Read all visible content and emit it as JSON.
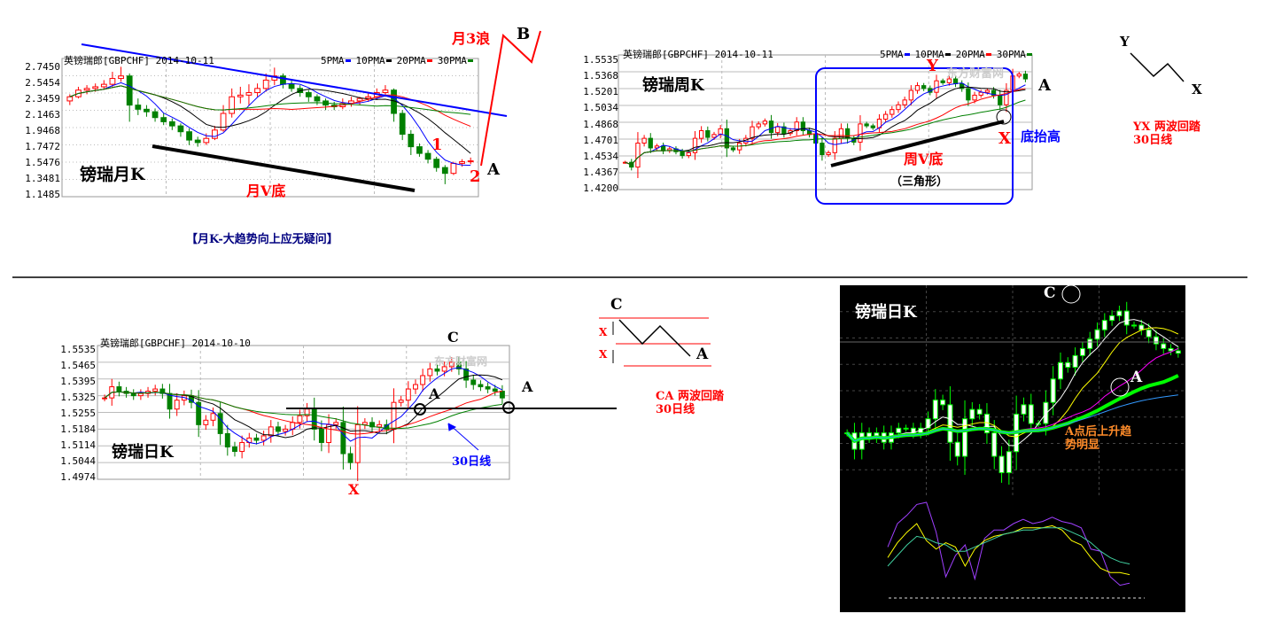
{
  "colors": {
    "up": "#ff0000",
    "down": "#008000",
    "ma5": "#0000ff",
    "ma10": "#000000",
    "ma20": "#ff0000",
    "ma30": "#008000",
    "trend_blue": "#0000ff",
    "annot_red": "#ff0000",
    "dark_bg": "#000000"
  },
  "legend": [
    {
      "label": "5PMA",
      "period": 5,
      "color": "#0000ff"
    },
    {
      "label": "10PMA",
      "period": 10,
      "color": "#000000"
    },
    {
      "label": "20PMA",
      "period": 20,
      "color": "#ff0000"
    },
    {
      "label": "30PMA",
      "period": 30,
      "color": "#008000"
    }
  ],
  "monthly": {
    "header": "英镑瑞郎[GBPCHF] 2014-10-11",
    "name": "镑瑞月K",
    "v_label": "月V底",
    "wave_label": "月3浪",
    "b": "B",
    "one": "1",
    "two": "2",
    "a": "A",
    "caption": "【月K-大趋势向上应无疑问】",
    "ticks": [
      "2.7450",
      "2.5454",
      "2.3459",
      "2.1463",
      "1.9468",
      "1.7472",
      "1.5476",
      "1.3481",
      "1.1485"
    ],
    "ylim": [
      1.1485,
      2.745
    ],
    "ohlc": [
      [
        2.25,
        2.33,
        2.2,
        2.3
      ],
      [
        2.3,
        2.42,
        2.28,
        2.38
      ],
      [
        2.38,
        2.44,
        2.33,
        2.4
      ],
      [
        2.4,
        2.46,
        2.36,
        2.42
      ],
      [
        2.42,
        2.5,
        2.39,
        2.45
      ],
      [
        2.45,
        2.6,
        2.42,
        2.52
      ],
      [
        2.52,
        2.66,
        2.48,
        2.55
      ],
      [
        2.55,
        2.58,
        2.0,
        2.2
      ],
      [
        2.2,
        2.28,
        2.08,
        2.15
      ],
      [
        2.15,
        2.2,
        2.06,
        2.12
      ],
      [
        2.12,
        2.16,
        2.0,
        2.05
      ],
      [
        2.05,
        2.1,
        1.96,
        2.0
      ],
      [
        2.0,
        2.04,
        1.9,
        1.95
      ],
      [
        1.95,
        1.98,
        1.82,
        1.88
      ],
      [
        1.88,
        1.92,
        1.72,
        1.78
      ],
      [
        1.78,
        1.82,
        1.7,
        1.75
      ],
      [
        1.75,
        1.86,
        1.72,
        1.8
      ],
      [
        1.8,
        1.95,
        1.78,
        1.9
      ],
      [
        1.9,
        2.2,
        1.88,
        2.1
      ],
      [
        2.1,
        2.4,
        2.05,
        2.3
      ],
      [
        2.3,
        2.42,
        2.22,
        2.32
      ],
      [
        2.32,
        2.45,
        2.2,
        2.35
      ],
      [
        2.35,
        2.46,
        2.3,
        2.4
      ],
      [
        2.4,
        2.58,
        2.36,
        2.5
      ],
      [
        2.5,
        2.65,
        2.44,
        2.55
      ],
      [
        2.55,
        2.58,
        2.4,
        2.45
      ],
      [
        2.45,
        2.5,
        2.36,
        2.4
      ],
      [
        2.4,
        2.44,
        2.3,
        2.35
      ],
      [
        2.35,
        2.38,
        2.24,
        2.3
      ],
      [
        2.3,
        2.33,
        2.2,
        2.25
      ],
      [
        2.25,
        2.28,
        2.14,
        2.2
      ],
      [
        2.2,
        2.24,
        2.14,
        2.18
      ],
      [
        2.18,
        2.28,
        2.15,
        2.22
      ],
      [
        2.22,
        2.3,
        2.18,
        2.25
      ],
      [
        2.25,
        2.3,
        2.2,
        2.28
      ],
      [
        2.28,
        2.34,
        2.24,
        2.3
      ],
      [
        2.3,
        2.4,
        2.26,
        2.35
      ],
      [
        2.35,
        2.44,
        2.3,
        2.38
      ],
      [
        2.38,
        2.4,
        2.0,
        2.1
      ],
      [
        2.1,
        2.14,
        1.78,
        1.85
      ],
      [
        1.85,
        1.9,
        1.6,
        1.7
      ],
      [
        1.7,
        1.74,
        1.58,
        1.62
      ],
      [
        1.62,
        1.66,
        1.5,
        1.55
      ],
      [
        1.55,
        1.58,
        1.4,
        1.45
      ],
      [
        1.45,
        1.48,
        1.25,
        1.38
      ],
      [
        1.38,
        1.52,
        1.36,
        1.5
      ],
      [
        1.5,
        1.55,
        1.46,
        1.52
      ],
      [
        1.52,
        1.57,
        1.49,
        1.53
      ]
    ]
  },
  "weekly": {
    "header": "英镑瑞郎[GBPCHF] 2014-10-11",
    "name": "镑瑞周K",
    "y": "Y",
    "a": "A",
    "x": "X",
    "bottom_up": "底抬高",
    "v_label": "周V底",
    "triangle": "（三角形）",
    "watermark": "东方财富网",
    "ticks": [
      "1.5535",
      "1.5368",
      "1.5201",
      "1.5034",
      "1.4868",
      "1.4701",
      "1.4534",
      "1.4367",
      "1.4200"
    ],
    "ylim": [
      1.42,
      1.5535
    ],
    "closes": [
      1.445,
      1.44,
      1.465,
      1.47,
      1.46,
      1.462,
      1.457,
      1.459,
      1.456,
      1.452,
      1.455,
      1.47,
      1.478,
      1.471,
      1.474,
      1.48,
      1.46,
      1.458,
      1.465,
      1.47,
      1.482,
      1.485,
      1.488,
      1.476,
      1.482,
      1.475,
      1.478,
      1.487,
      1.478,
      1.474,
      1.465,
      1.453,
      1.455,
      1.47,
      1.48,
      1.47,
      1.466,
      1.485,
      1.483,
      1.481,
      1.49,
      1.495,
      1.5,
      1.505,
      1.51,
      1.52,
      1.525,
      1.522,
      1.518,
      1.53,
      1.528,
      1.532,
      1.527,
      1.522,
      1.51,
      1.515,
      1.518,
      1.52,
      1.515,
      1.505,
      1.52,
      1.535,
      1.537,
      1.532
    ]
  },
  "yx_diagram": {
    "y": "Y",
    "x": "X",
    "line1": "YX 两波回踏",
    "line2": "30日线"
  },
  "daily": {
    "header": "英镑瑞郎[GBPCHF] 2014-10-10",
    "name": "镑瑞日K",
    "c": "C",
    "a1": "A",
    "a2": "A",
    "x": "X",
    "ma30_label": "30日线",
    "watermark": "东方财富网",
    "ticks": [
      "1.5535",
      "1.5465",
      "1.5395",
      "1.5325",
      "1.5255",
      "1.5184",
      "1.5114",
      "1.5044",
      "1.4974"
    ],
    "ylim": [
      1.4974,
      1.5535
    ],
    "closes": [
      1.532,
      1.537,
      1.535,
      1.534,
      1.533,
      1.534,
      1.535,
      1.536,
      1.534,
      1.527,
      1.531,
      1.533,
      1.53,
      1.52,
      1.522,
      1.525,
      1.516,
      1.51,
      1.508,
      1.512,
      1.514,
      1.513,
      1.515,
      1.519,
      1.517,
      1.518,
      1.521,
      1.524,
      1.527,
      1.518,
      1.512,
      1.52,
      1.521,
      1.507,
      1.503,
      1.52,
      1.521,
      1.519,
      1.52,
      1.518,
      1.53,
      1.531,
      1.536,
      1.538,
      1.542,
      1.545,
      1.544,
      1.546,
      1.548,
      1.545,
      1.54,
      1.538,
      1.537,
      1.536,
      1.535,
      1.532
    ]
  },
  "ca_diagram": {
    "c": "C",
    "a": "A",
    "x1": "X",
    "x2": "X",
    "line1": "CA 两波回踏",
    "line2": "30日线"
  },
  "dark_daily": {
    "name": "镑瑞日K",
    "c": "C",
    "a": "A",
    "note1": "A点后上升趋",
    "note2": "势明显",
    "ma_colors": [
      "#ffffff",
      "#ffff00",
      "#ff00ff",
      "#00ff00",
      "#3399ff"
    ],
    "ma_periods": [
      5,
      10,
      20,
      30,
      60
    ],
    "closes": [
      1.512,
      1.505,
      1.512,
      1.51,
      1.512,
      1.508,
      1.512,
      1.514,
      1.514,
      1.512,
      1.514,
      1.518,
      1.526,
      1.524,
      1.508,
      1.502,
      1.518,
      1.522,
      1.52,
      1.512,
      1.502,
      1.495,
      1.504,
      1.52,
      1.524,
      1.516,
      1.516,
      1.525,
      1.535,
      1.542,
      1.54,
      1.545,
      1.548,
      1.552,
      1.556,
      1.56,
      1.562,
      1.564,
      1.558,
      1.558,
      1.556,
      1.553,
      1.55,
      1.548,
      1.547,
      1.546
    ],
    "indicator": {
      "purple": [
        48,
        70,
        78,
        88,
        90,
        62,
        20,
        40,
        50,
        18,
        56,
        64,
        64,
        70,
        74,
        70,
        72,
        76,
        72,
        70,
        66,
        46,
        44,
        20,
        12,
        14
      ],
      "yellow": [
        38,
        52,
        62,
        70,
        54,
        46,
        52,
        48,
        30,
        46,
        54,
        58,
        60,
        62,
        66,
        66,
        66,
        68,
        64,
        54,
        50,
        38,
        28,
        24,
        24,
        22
      ],
      "teal": [
        30,
        40,
        50,
        58,
        56,
        52,
        50,
        44,
        44,
        48,
        52,
        56,
        60,
        62,
        64,
        64,
        66,
        66,
        66,
        62,
        58,
        52,
        44,
        38,
        34,
        32
      ]
    }
  }
}
